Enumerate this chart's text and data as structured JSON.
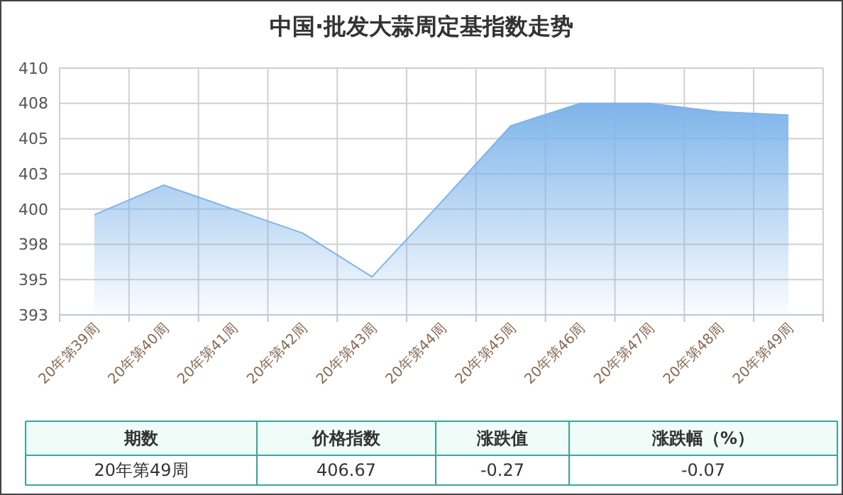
{
  "chart_data": {
    "type": "area",
    "title": "中国·批发大蒜周定基指数走势",
    "categories": [
      "20年第39周",
      "20年第40周",
      "20年第41周",
      "20年第42周",
      "20年第43周",
      "20年第44周",
      "20年第45周",
      "20年第46周",
      "20年第47周",
      "20年第48周",
      "20年第49周"
    ],
    "series": [
      {
        "color": "#7eb4ea",
        "values": [
          399.6,
          401.7,
          400.0,
          398.3,
          395.2,
          400.5,
          405.9,
          407.5,
          407.5,
          406.9,
          406.67
        ]
      }
    ],
    "ylim": [
      392.5,
      410
    ],
    "yticks": [
      {
        "value": 392.5,
        "label": "393"
      },
      395,
      {
        "value": 397.5,
        "label": "398"
      },
      400,
      {
        "value": 402.5,
        "label": "403"
      },
      405,
      {
        "value": 407.5,
        "label": "408"
      },
      410
    ],
    "grid": true,
    "annotations": [
      "期数",
      "价格指数",
      "涨跌值",
      "涨跌幅（%）",
      "20年第49周",
      "406.67",
      "-0.27",
      "-0.07"
    ]
  }
}
